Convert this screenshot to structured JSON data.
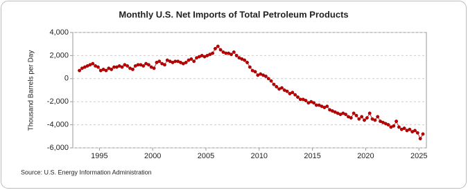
{
  "chart_data": {
    "type": "line",
    "title": "Monthly U.S. Net Imports of Total Petroleum Products",
    "y_label": "Thousand Barrels per Day",
    "source": "Source: U.S. Energy Information Administration",
    "color": "#c00000",
    "grid": true,
    "xlim": [
      1992.5,
      2025.7
    ],
    "xticks": [
      1995,
      2000,
      2005,
      2010,
      2015,
      2020,
      2025
    ],
    "ylim": [
      -6000,
      4000
    ],
    "yticks": [
      {
        "value": -6000,
        "label": "-6,000"
      },
      {
        "value": -4000,
        "label": "-4,000"
      },
      {
        "value": -2000,
        "label": "-2,000"
      },
      0,
      {
        "value": 2000,
        "label": "2,000"
      },
      {
        "value": 4000,
        "label": "4,000"
      }
    ],
    "x": [
      1993.125,
      1993.375,
      1993.625,
      1993.875,
      1994.125,
      1994.375,
      1994.625,
      1994.875,
      1995.125,
      1995.375,
      1995.625,
      1995.875,
      1996.125,
      1996.375,
      1996.625,
      1996.875,
      1997.125,
      1997.375,
      1997.625,
      1997.875,
      1998.125,
      1998.375,
      1998.625,
      1998.875,
      1999.125,
      1999.375,
      1999.625,
      1999.875,
      2000.125,
      2000.375,
      2000.625,
      2000.875,
      2001.125,
      2001.375,
      2001.625,
      2001.875,
      2002.125,
      2002.375,
      2002.625,
      2002.875,
      2003.125,
      2003.375,
      2003.625,
      2003.875,
      2004.125,
      2004.375,
      2004.625,
      2004.875,
      2005.125,
      2005.375,
      2005.625,
      2005.875,
      2006.125,
      2006.375,
      2006.625,
      2006.875,
      2007.125,
      2007.375,
      2007.625,
      2007.875,
      2008.125,
      2008.375,
      2008.625,
      2008.875,
      2009.125,
      2009.375,
      2009.625,
      2009.875,
      2010.125,
      2010.375,
      2010.625,
      2010.875,
      2011.125,
      2011.375,
      2011.625,
      2011.875,
      2012.125,
      2012.375,
      2012.625,
      2012.875,
      2013.125,
      2013.375,
      2013.625,
      2013.875,
      2014.125,
      2014.375,
      2014.625,
      2014.875,
      2015.125,
      2015.375,
      2015.625,
      2015.875,
      2016.125,
      2016.375,
      2016.625,
      2016.875,
      2017.125,
      2017.375,
      2017.625,
      2017.875,
      2018.125,
      2018.375,
      2018.625,
      2018.875,
      2019.125,
      2019.375,
      2019.625,
      2019.875,
      2020.125,
      2020.375,
      2020.625,
      2020.875,
      2021.125,
      2021.375,
      2021.625,
      2021.875,
      2022.125,
      2022.375,
      2022.625,
      2022.875,
      2023.125,
      2023.375,
      2023.625,
      2023.875,
      2024.125,
      2024.375,
      2024.625,
      2024.875,
      2025.125,
      2025.375
    ],
    "values": [
      700,
      900,
      1000,
      1100,
      1200,
      1300,
      1100,
      1000,
      700,
      800,
      700,
      900,
      800,
      1000,
      1000,
      1100,
      1000,
      1200,
      1100,
      900,
      800,
      1100,
      1200,
      1200,
      1100,
      1300,
      1200,
      1000,
      900,
      1400,
      1500,
      1300,
      1200,
      1600,
      1500,
      1400,
      1500,
      1500,
      1400,
      1300,
      1400,
      1600,
      1700,
      1500,
      1800,
      1900,
      2000,
      1900,
      2000,
      2100,
      2200,
      2600,
      2800,
      2500,
      2300,
      2200,
      2200,
      2100,
      2300,
      2000,
      1800,
      1700,
      1600,
      1400,
      1000,
      700,
      600,
      300,
      400,
      300,
      200,
      0,
      -200,
      -500,
      -700,
      -900,
      -800,
      -1000,
      -1100,
      -1300,
      -1200,
      -1400,
      -1600,
      -1800,
      -1800,
      -1900,
      -2100,
      -2000,
      -2100,
      -2300,
      -2300,
      -2400,
      -2500,
      -2400,
      -2700,
      -2800,
      -2900,
      -3000,
      -3100,
      -3000,
      -3100,
      -3300,
      -3400,
      -3000,
      -3200,
      -3500,
      -3300,
      -3600,
      -3400,
      -3000,
      -3500,
      -3600,
      -3300,
      -3700,
      -3800,
      -3900,
      -4000,
      -4200,
      -4100,
      -3700,
      -4200,
      -4400,
      -4300,
      -4500,
      -4400,
      -4600,
      -4500,
      -4700,
      -5200,
      -4800
    ]
  }
}
